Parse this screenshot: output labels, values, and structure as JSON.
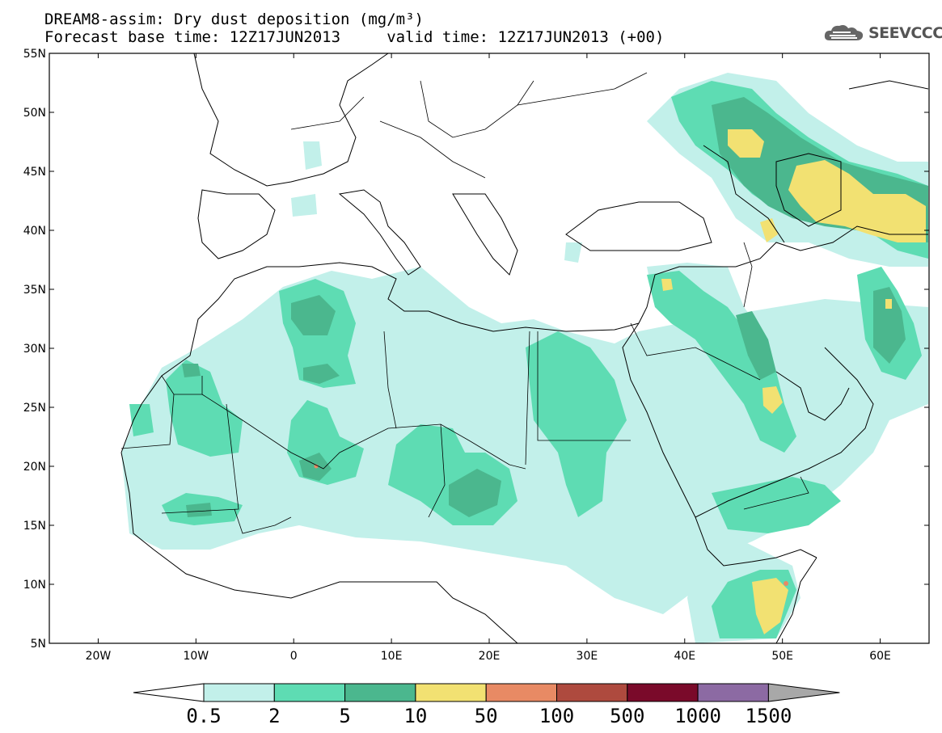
{
  "title": {
    "line1": "DREAM8-assim: Dry dust deposition (mg/m³)",
    "line2": "Forecast base time: 12Z17JUN2013     valid time: 12Z17JUN2013 (+00)"
  },
  "logo": {
    "text": "SEEVCCC",
    "icon": "cloud-icon"
  },
  "map": {
    "lon_range": [
      -25,
      65
    ],
    "lat_range": [
      5,
      55
    ],
    "lat_ticks": [
      {
        "v": 55,
        "label": "55N"
      },
      {
        "v": 50,
        "label": "50N"
      },
      {
        "v": 45,
        "label": "45N"
      },
      {
        "v": 40,
        "label": "40N"
      },
      {
        "v": 35,
        "label": "35N"
      },
      {
        "v": 30,
        "label": "30N"
      },
      {
        "v": 25,
        "label": "25N"
      },
      {
        "v": 20,
        "label": "20N"
      },
      {
        "v": 15,
        "label": "15N"
      },
      {
        "v": 10,
        "label": "10N"
      },
      {
        "v": 5,
        "label": "5N"
      }
    ],
    "lon_ticks": [
      {
        "v": -20,
        "label": "20W"
      },
      {
        "v": -10,
        "label": "10W"
      },
      {
        "v": 0,
        "label": "0"
      },
      {
        "v": 10,
        "label": "10E"
      },
      {
        "v": 20,
        "label": "20E"
      },
      {
        "v": 30,
        "label": "30E"
      },
      {
        "v": 40,
        "label": "40E"
      },
      {
        "v": 50,
        "label": "50E"
      },
      {
        "v": 60,
        "label": "60E"
      }
    ]
  },
  "legend": {
    "levels": [
      "0.5",
      "2",
      "5",
      "10",
      "50",
      "100",
      "500",
      "1000",
      "1500"
    ],
    "colors": [
      "#c2f0ea",
      "#5edcb3",
      "#4bb78e",
      "#f2e172",
      "#e88a64",
      "#ae4a3e",
      "#7a0a2a",
      "#8c6aa3",
      "#a8a8a8"
    ],
    "low_color": "#ffffff"
  }
}
